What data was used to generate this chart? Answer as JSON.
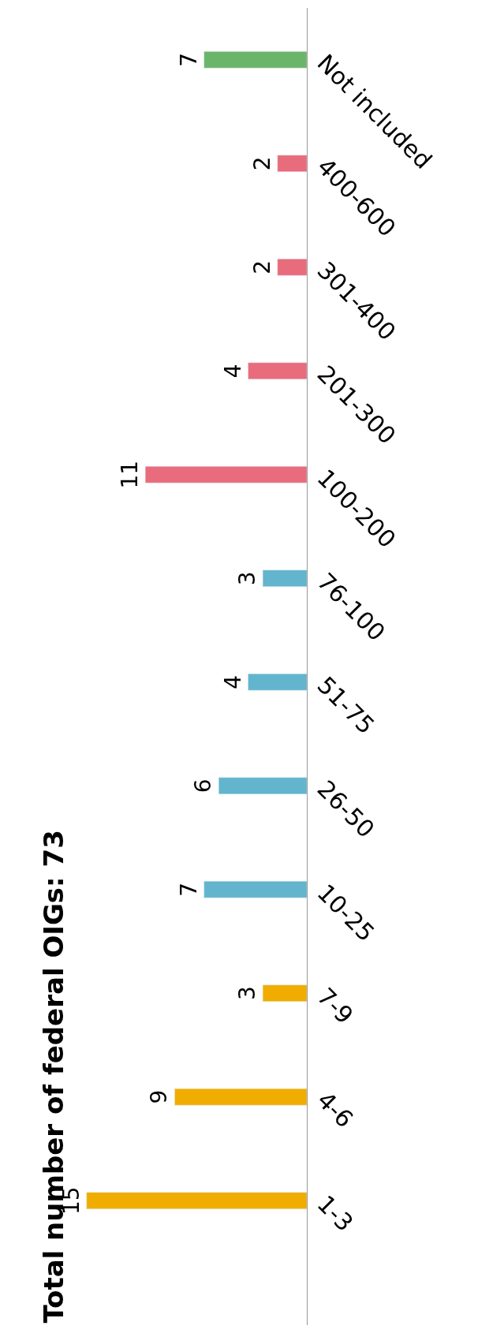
{
  "chart_data": {
    "type": "bar",
    "orientation": "horizontal",
    "title": "Total number of federal OIGs: 73",
    "categories": [
      "Not included",
      "400-600",
      "301-400",
      "201-300",
      "100-200",
      "76-100",
      "51-75",
      "26-50",
      "10-25",
      "7-9",
      "4-6",
      "1-3"
    ],
    "values": [
      7,
      2,
      2,
      4,
      11,
      3,
      4,
      6,
      7,
      3,
      9,
      15
    ],
    "colors": [
      "#6ab56a",
      "#e86c7c",
      "#e86c7c",
      "#e86c7c",
      "#e86c7c",
      "#62b5cc",
      "#62b5cc",
      "#62b5cc",
      "#62b5cc",
      "#f0ad00",
      "#f0ad00",
      "#f0ad00"
    ],
    "data_labels": true
  }
}
